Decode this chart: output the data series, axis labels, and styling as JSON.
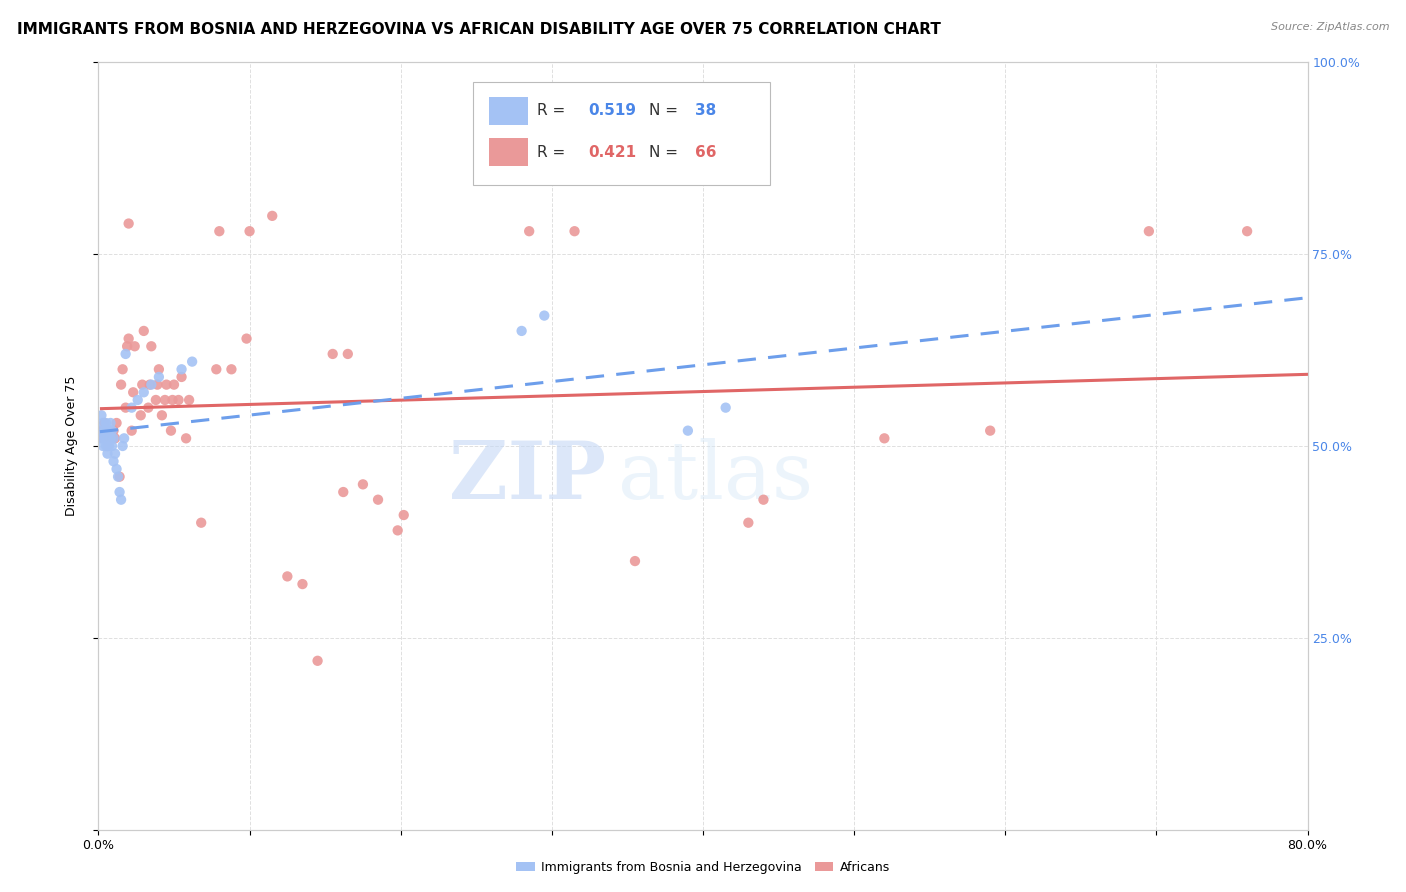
{
  "title": "IMMIGRANTS FROM BOSNIA AND HERZEGOVINA VS AFRICAN DISABILITY AGE OVER 75 CORRELATION CHART",
  "source": "Source: ZipAtlas.com",
  "ylabel": "Disability Age Over 75",
  "y_min": 0.0,
  "y_max": 1.0,
  "x_min": 0.0,
  "x_max": 0.8,
  "y_ticks": [
    0.0,
    0.25,
    0.5,
    0.75,
    1.0
  ],
  "y_tick_labels": [
    "",
    "25.0%",
    "50.0%",
    "75.0%",
    "100.0%"
  ],
  "x_ticks": [
    0.0,
    0.1,
    0.2,
    0.3,
    0.4,
    0.5,
    0.6,
    0.7,
    0.8
  ],
  "x_tick_labels": [
    "0.0%",
    "",
    "",
    "",
    "",
    "",
    "",
    "",
    "80.0%"
  ],
  "watermark_zip": "ZIP",
  "watermark_atlas": "atlas",
  "legend_bosnia_r": "0.519",
  "legend_bosnia_n": "38",
  "legend_african_r": "0.421",
  "legend_african_n": "66",
  "bosnia_color": "#a4c2f4",
  "african_color": "#ea9999",
  "bosnia_line_color": "#6d9eeb",
  "african_line_color": "#e06666",
  "background_color": "#ffffff",
  "grid_color": "#e0e0e0",
  "axis_color": "#cccccc",
  "title_fontsize": 11,
  "label_fontsize": 9,
  "tick_fontsize": 9,
  "right_tick_color": "#4a86e8",
  "bosnia_scatter": [
    [
      0.001,
      0.52
    ],
    [
      0.002,
      0.51
    ],
    [
      0.002,
      0.54
    ],
    [
      0.003,
      0.5
    ],
    [
      0.003,
      0.53
    ],
    [
      0.004,
      0.51
    ],
    [
      0.004,
      0.52
    ],
    [
      0.005,
      0.5
    ],
    [
      0.005,
      0.53
    ],
    [
      0.006,
      0.49
    ],
    [
      0.006,
      0.52
    ],
    [
      0.007,
      0.5
    ],
    [
      0.007,
      0.52
    ],
    [
      0.008,
      0.51
    ],
    [
      0.008,
      0.53
    ],
    [
      0.009,
      0.5
    ],
    [
      0.009,
      0.52
    ],
    [
      0.01,
      0.48
    ],
    [
      0.01,
      0.51
    ],
    [
      0.011,
      0.49
    ],
    [
      0.012,
      0.47
    ],
    [
      0.013,
      0.46
    ],
    [
      0.014,
      0.44
    ],
    [
      0.015,
      0.43
    ],
    [
      0.016,
      0.5
    ],
    [
      0.017,
      0.51
    ],
    [
      0.018,
      0.62
    ],
    [
      0.022,
      0.55
    ],
    [
      0.026,
      0.56
    ],
    [
      0.03,
      0.57
    ],
    [
      0.035,
      0.58
    ],
    [
      0.04,
      0.59
    ],
    [
      0.055,
      0.6
    ],
    [
      0.062,
      0.61
    ],
    [
      0.28,
      0.65
    ],
    [
      0.295,
      0.67
    ],
    [
      0.39,
      0.52
    ],
    [
      0.415,
      0.55
    ]
  ],
  "african_scatter": [
    [
      0.002,
      0.52
    ],
    [
      0.003,
      0.51
    ],
    [
      0.004,
      0.53
    ],
    [
      0.005,
      0.52
    ],
    [
      0.006,
      0.5
    ],
    [
      0.007,
      0.51
    ],
    [
      0.008,
      0.52
    ],
    [
      0.009,
      0.51
    ],
    [
      0.01,
      0.52
    ],
    [
      0.011,
      0.51
    ],
    [
      0.012,
      0.53
    ],
    [
      0.014,
      0.46
    ],
    [
      0.015,
      0.58
    ],
    [
      0.016,
      0.6
    ],
    [
      0.018,
      0.55
    ],
    [
      0.019,
      0.63
    ],
    [
      0.02,
      0.64
    ],
    [
      0.022,
      0.52
    ],
    [
      0.023,
      0.57
    ],
    [
      0.024,
      0.63
    ],
    [
      0.028,
      0.54
    ],
    [
      0.029,
      0.58
    ],
    [
      0.03,
      0.65
    ],
    [
      0.033,
      0.55
    ],
    [
      0.034,
      0.58
    ],
    [
      0.035,
      0.63
    ],
    [
      0.038,
      0.56
    ],
    [
      0.039,
      0.58
    ],
    [
      0.04,
      0.6
    ],
    [
      0.042,
      0.54
    ],
    [
      0.044,
      0.56
    ],
    [
      0.045,
      0.58
    ],
    [
      0.048,
      0.52
    ],
    [
      0.049,
      0.56
    ],
    [
      0.05,
      0.58
    ],
    [
      0.053,
      0.56
    ],
    [
      0.055,
      0.59
    ],
    [
      0.058,
      0.51
    ],
    [
      0.06,
      0.56
    ],
    [
      0.068,
      0.4
    ],
    [
      0.078,
      0.6
    ],
    [
      0.08,
      0.78
    ],
    [
      0.088,
      0.6
    ],
    [
      0.098,
      0.64
    ],
    [
      0.1,
      0.78
    ],
    [
      0.115,
      0.8
    ],
    [
      0.02,
      0.79
    ],
    [
      0.125,
      0.33
    ],
    [
      0.135,
      0.32
    ],
    [
      0.145,
      0.22
    ],
    [
      0.155,
      0.62
    ],
    [
      0.165,
      0.62
    ],
    [
      0.162,
      0.44
    ],
    [
      0.175,
      0.45
    ],
    [
      0.185,
      0.43
    ],
    [
      0.198,
      0.39
    ],
    [
      0.202,
      0.41
    ],
    [
      0.285,
      0.78
    ],
    [
      0.315,
      0.78
    ],
    [
      0.355,
      0.35
    ],
    [
      0.43,
      0.4
    ],
    [
      0.44,
      0.43
    ],
    [
      0.52,
      0.51
    ],
    [
      0.59,
      0.52
    ],
    [
      0.695,
      0.78
    ],
    [
      0.76,
      0.78
    ]
  ]
}
